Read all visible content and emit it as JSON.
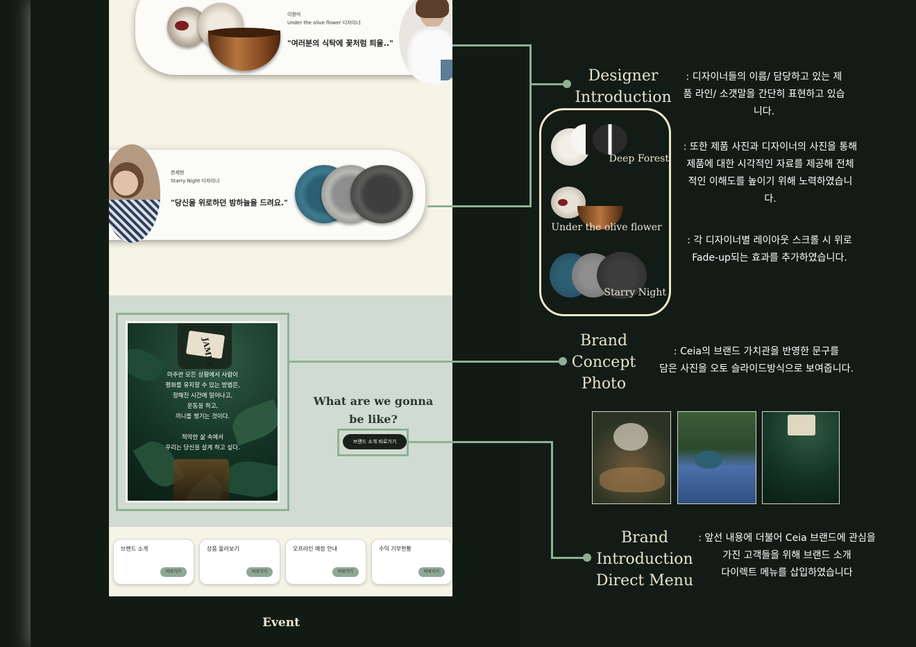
{
  "designers": [
    {
      "name": "이창미",
      "role": "Under the olive flower 디자이너",
      "quote": "\"여러분의 식탁에 꽃처럼 틔울..\""
    },
    {
      "name": "한세현",
      "role": "Starry Night 디자이너",
      "quote": "\"당신을 위로하던 밤하늘을 드려요.\""
    }
  ],
  "concept": {
    "poem": [
      "마주한 모든 상황에서 사람이",
      "평화를 유지할 수 있는 방법은,",
      "정해진 시간에 일어나고,",
      "운동을 하고,",
      "끼니를 챙기는 것이다.",
      "",
      "적막한 삶 속에서",
      "우리는 당신을 살게 하고 싶다."
    ],
    "bottle_label": "JAMES",
    "heading_line1": "What are we gonna",
    "heading_line2": "be like?",
    "button": "브랜드 소개 바로가기"
  },
  "menu": [
    {
      "title": "브랜드 소개",
      "button": "바로가기"
    },
    {
      "title": "상품 둘러보기",
      "button": "바로가기"
    },
    {
      "title": "오프라인 매장 안내",
      "button": "바로가기"
    },
    {
      "title": "수익 기부현황",
      "button": "바로가기"
    }
  ],
  "footer_label": "Event",
  "annotations": {
    "designer_title": [
      "Designer",
      "Introduction"
    ],
    "designer_desc1": [
      ": 디자이너들의 이름/ 담당하고 있는 제",
      "품 라인/ 소갯말을 간단히 표현하고 있습",
      "니다."
    ],
    "designer_desc2": [
      ": 또한 제품 사진과 디자이너의 사진을 통해",
      "제품에 대한 시각적인 자료를 제공해 전체",
      "적인 이해도를 높이기 위해 노력하였습니",
      "다."
    ],
    "designer_desc3": [
      ": 각 디자이너별 레이아웃 스크롤 시 위로",
      "Fade-up되는 효과를 추가하였습니다."
    ],
    "product_lines": [
      "Deep  Forest",
      "Under the olive flower",
      "Starry Night"
    ],
    "concept_title": [
      "Brand",
      "Concept",
      "Photo"
    ],
    "concept_desc": [
      ": Ceia의 브랜드 가치관을 반영한 문구를",
      "담은 사진을 오토 슬라이드방식으로 보여줍니다."
    ],
    "intro_title": [
      "Brand",
      "Introduction",
      "Direct Menu"
    ],
    "intro_desc": [
      ": 앞선 내용에 더불어 Ceia 브랜드에 관심을",
      "가진 고객들을 위해 브랜드 소개",
      "다이렉트 메뉴를 삽입하였습니다"
    ]
  },
  "colors": {
    "accent": "#8fb094",
    "dark": "#121a14",
    "cream": "#f6f4e6",
    "sage": "#d0dcd1"
  }
}
